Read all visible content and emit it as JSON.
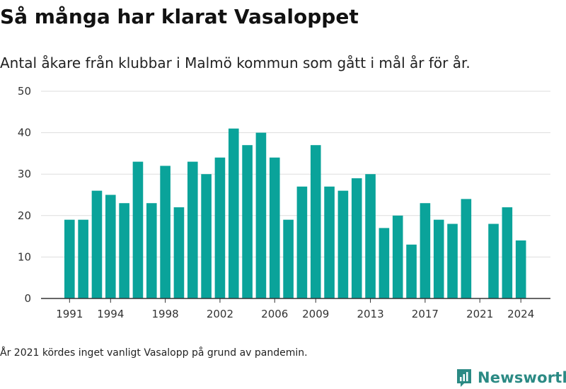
{
  "title": "Så många har klarat Vasaloppet",
  "subtitle": "Antal åkare från klubbar i Malmö kommun som gått i mål år för år.",
  "footnote": "År 2021 kördes inget vanligt Vasalopp på grund av pandemin.",
  "brand": {
    "name": "Newsworthy",
    "icon": "newsworthy-logo-icon"
  },
  "colors": {
    "bar": "#0aa39a",
    "grid": "#dddddd",
    "axis": "#333333",
    "brand": "#2b8a84"
  },
  "chart_data": {
    "type": "bar",
    "x": [
      1991,
      1992,
      1993,
      1994,
      1995,
      1996,
      1997,
      1998,
      1999,
      2000,
      2001,
      2002,
      2003,
      2004,
      2005,
      2006,
      2007,
      2008,
      2009,
      2010,
      2011,
      2012,
      2013,
      2014,
      2015,
      2016,
      2017,
      2018,
      2019,
      2020,
      2021,
      2022,
      2023,
      2024
    ],
    "values": [
      19,
      19,
      26,
      25,
      23,
      33,
      23,
      32,
      22,
      33,
      30,
      34,
      41,
      37,
      40,
      34,
      19,
      27,
      37,
      27,
      26,
      29,
      30,
      17,
      20,
      13,
      23,
      19,
      18,
      24,
      null,
      18,
      22,
      14
    ],
    "xticks": [
      1991,
      1994,
      1998,
      2002,
      2006,
      2009,
      2013,
      2017,
      2021,
      2024
    ],
    "yticks": [
      0,
      10,
      20,
      30,
      40,
      50
    ],
    "ylim": [
      0,
      50
    ],
    "grid": true,
    "legend": "none"
  }
}
